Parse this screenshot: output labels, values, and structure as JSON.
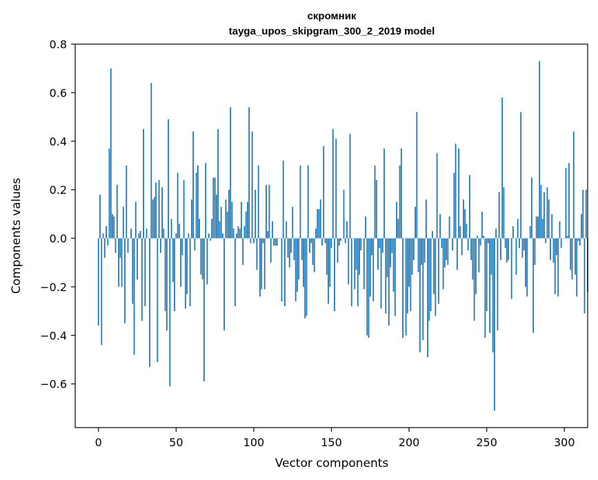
{
  "chart_data": {
    "type": "bar",
    "title": [
      "скромник",
      "tayga_upos_skipgram_300_2_2019 model"
    ],
    "xlabel": "Vector components",
    "ylabel": "Components values",
    "xlim": [
      -15,
      315
    ],
    "ylim": [
      -0.78,
      0.8
    ],
    "xticks": [
      0,
      50,
      100,
      150,
      200,
      250,
      300
    ],
    "xtick_labels": [
      "0",
      "50",
      "100",
      "150",
      "200",
      "250",
      "300"
    ],
    "yticks": [
      -0.6,
      -0.4,
      -0.2,
      0.0,
      0.2,
      0.4,
      0.6,
      0.8
    ],
    "ytick_labels": [
      "−0.6",
      "−0.4",
      "−0.2",
      "0.0",
      "0.2",
      "0.4",
      "0.6",
      "0.8"
    ],
    "bar_color": "#1f77b4",
    "grid": false,
    "series": [
      {
        "name": "components",
        "x_start": 0,
        "values": [
          -0.36,
          0.18,
          -0.44,
          0.02,
          -0.08,
          0.05,
          -0.03,
          0.37,
          0.7,
          0.1,
          0.09,
          -0.06,
          0.22,
          -0.2,
          -0.08,
          -0.2,
          0.13,
          -0.35,
          0.3,
          -0.06,
          0.0,
          0.04,
          -0.27,
          -0.48,
          0.15,
          -0.17,
          0.02,
          0.03,
          -0.34,
          0.45,
          -0.28,
          0.04,
          0.0,
          -0.53,
          0.64,
          0.16,
          0.17,
          0.23,
          -0.51,
          0.24,
          -0.06,
          0.21,
          0.04,
          -0.3,
          -0.38,
          0.49,
          -0.61,
          0.08,
          -0.18,
          -0.3,
          0.02,
          0.27,
          0.06,
          -0.2,
          -0.07,
          0.24,
          -0.29,
          -0.23,
          0.02,
          -0.28,
          0.16,
          0.44,
          -0.05,
          0.27,
          0.3,
          0.08,
          -0.15,
          -0.17,
          -0.59,
          0.31,
          -0.19,
          0.02,
          -0.01,
          0.08,
          0.25,
          0.25,
          0.18,
          0.45,
          0.07,
          0.13,
          0.02,
          -0.38,
          0.16,
          0.11,
          0.2,
          0.54,
          0.15,
          0.04,
          -0.28,
          0.02,
          0.05,
          0.04,
          0.15,
          -0.11,
          0.05,
          0.11,
          0.15,
          0.54,
          -0.02,
          0.44,
          -0.02,
          0.2,
          -0.13,
          0.3,
          -0.24,
          -0.21,
          -0.02,
          -0.21,
          0.22,
          0.03,
          0.22,
          -0.1,
          0.07,
          -0.03,
          -0.03,
          -0.03,
          0.0,
          0.0,
          -0.26,
          0.32,
          -0.28,
          0.07,
          -0.08,
          -0.12,
          -0.06,
          0.13,
          -0.09,
          -0.26,
          -0.22,
          -0.17,
          0.3,
          -0.09,
          -0.2,
          -0.33,
          -0.32,
          0.3,
          -0.06,
          -0.02,
          -0.11,
          -0.14,
          0.04,
          0.12,
          0.12,
          0.16,
          -0.03,
          0.38,
          -0.02,
          -0.15,
          -0.27,
          -0.2,
          -0.04,
          0.45,
          -0.3,
          0.41,
          -0.1,
          -0.03,
          -0.01,
          0.0,
          0.2,
          -0.02,
          0.07,
          -0.19,
          0.43,
          -0.28,
          0.0,
          -0.21,
          -0.13,
          -0.28,
          -0.15,
          -0.05,
          0.0,
          -0.21,
          0.09,
          -0.4,
          -0.41,
          -0.24,
          -0.07,
          -0.26,
          0.3,
          0.24,
          -0.13,
          -0.04,
          -0.29,
          -0.06,
          0.37,
          -0.31,
          -0.16,
          -0.36,
          -0.12,
          -0.06,
          -0.22,
          -0.32,
          0.15,
          0.08,
          0.3,
          0.37,
          -0.41,
          0.0,
          -0.4,
          -0.31,
          -0.2,
          -0.3,
          -0.15,
          -0.09,
          0.13,
          0.52,
          -0.14,
          -0.47,
          -0.11,
          -0.42,
          -0.1,
          0.16,
          -0.49,
          -0.34,
          -0.3,
          0.03,
          -0.23,
          -0.32,
          0.35,
          -0.27,
          0.1,
          -0.04,
          -0.21,
          -0.12,
          -0.09,
          -0.11,
          0.09,
          0.0,
          -0.05,
          0.27,
          0.39,
          -0.13,
          0.37,
          0.05,
          -0.07,
          0.16,
          0.12,
          0.06,
          -0.05,
          0.26,
          -0.09,
          -0.17,
          -0.34,
          -0.23,
          0.01,
          -0.14,
          -0.03,
          0.11,
          0.01,
          -0.41,
          -0.3,
          -0.02,
          -0.39,
          -0.15,
          -0.47,
          -0.71,
          0.04,
          -0.38,
          0.19,
          -0.09,
          0.58,
          0.21,
          -0.04,
          -0.1,
          -0.09,
          0.0,
          -0.25,
          0.05,
          0.0,
          -0.15,
          0.08,
          -0.04,
          0.52,
          -0.08,
          -0.05,
          -0.2,
          -0.24,
          0.0,
          0.05,
          0.25,
          -0.39,
          -0.11,
          0.09,
          0.09,
          0.73,
          0.22,
          0.08,
          0.19,
          -0.02,
          0.21,
          0.16,
          -0.09,
          0.1,
          -0.1,
          -0.23,
          -0.07,
          -0.24,
          0.07,
          -0.04,
          0.0,
          0.0,
          0.29,
          0.01,
          0.31,
          -0.13,
          -0.17,
          0.44,
          -0.15,
          -0.24,
          -0.01,
          -0.03,
          0.1,
          0.2,
          -0.31,
          0.2,
          -0.22
        ]
      }
    ]
  }
}
